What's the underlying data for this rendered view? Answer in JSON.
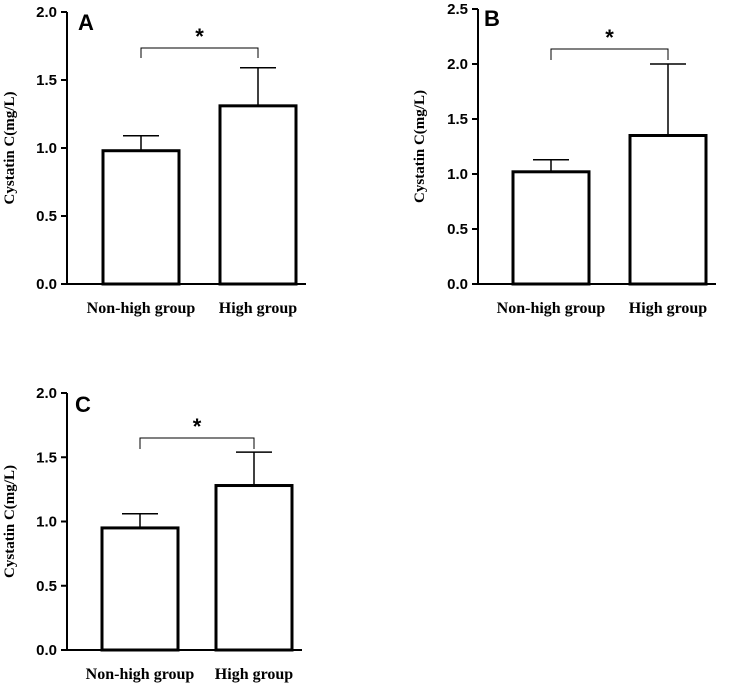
{
  "chart_data": [
    {
      "panel": "A",
      "type": "bar",
      "ylabel": "Cystatin C(mg/L)",
      "ylim": [
        0,
        2.0
      ],
      "yticks": [
        0.0,
        0.5,
        1.0,
        1.5,
        2.0
      ],
      "ytick_labels": [
        "0.0",
        "0.5",
        "1.0",
        "1.5",
        "2.0"
      ],
      "categories": [
        "Non-high group",
        "High group"
      ],
      "values": [
        0.98,
        1.31
      ],
      "errors": [
        0.11,
        0.28
      ],
      "significance": "*"
    },
    {
      "panel": "B",
      "type": "bar",
      "ylabel": "Cystatin C(mg/L)",
      "ylim": [
        0,
        2.5
      ],
      "yticks": [
        0.0,
        0.5,
        1.0,
        1.5,
        2.0,
        2.5
      ],
      "ytick_labels": [
        "0.0",
        "0.5",
        "1.0",
        "1.5",
        "2.0",
        "2.5"
      ],
      "categories": [
        "Non-high group",
        "High group"
      ],
      "values": [
        1.02,
        1.35
      ],
      "errors": [
        0.11,
        0.65
      ],
      "significance": "*"
    },
    {
      "panel": "C",
      "type": "bar",
      "ylabel": "Cystatin C(mg/L)",
      "ylim": [
        0,
        2.0
      ],
      "yticks": [
        0.0,
        0.5,
        1.0,
        1.5,
        2.0
      ],
      "ytick_labels": [
        "0.0",
        "0.5",
        "1.0",
        "1.5",
        "2.0"
      ],
      "categories": [
        "Non-high group",
        "High group"
      ],
      "values": [
        0.95,
        1.28
      ],
      "errors": [
        0.11,
        0.26
      ],
      "significance": "*"
    }
  ]
}
